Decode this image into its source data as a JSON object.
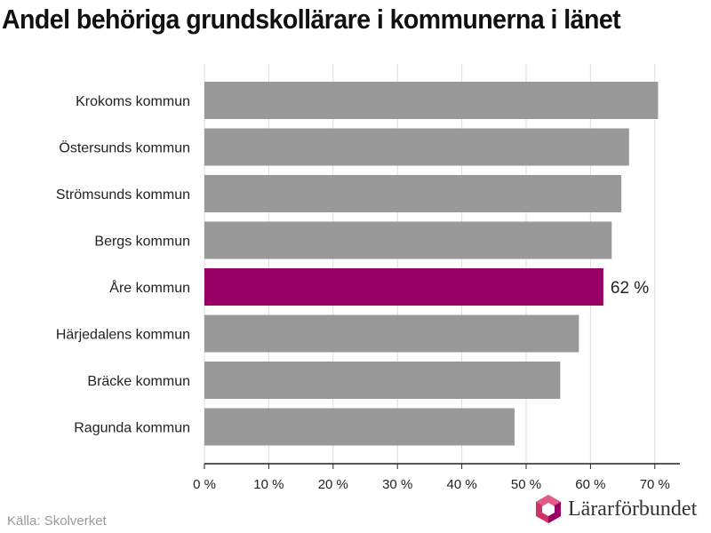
{
  "chart_data": {
    "type": "bar",
    "orientation": "horizontal",
    "title": "Andel behöriga grundskollärare i kommunerna i länet",
    "categories": [
      "Krokoms kommun",
      "Östersunds kommun",
      "Strömsunds kommun",
      "Bergs kommun",
      "Åre kommun",
      "Härjedalens kommun",
      "Bräcke kommun",
      "Ragunda kommun"
    ],
    "values": [
      70.5,
      66,
      64.8,
      63.3,
      62,
      58.2,
      55.3,
      48.2
    ],
    "highlight_index": 4,
    "data_labels": [
      {
        "index": 4,
        "text": "62 %"
      }
    ],
    "xlim": [
      0,
      75
    ],
    "xticks": [
      0,
      10,
      20,
      30,
      40,
      50,
      60,
      70
    ],
    "xtick_labels": [
      "0 %",
      "10 %",
      "20 %",
      "30 %",
      "40 %",
      "50 %",
      "60 %",
      "70 %"
    ],
    "xlabel": "",
    "ylabel": "",
    "grid": "vertical",
    "colors": {
      "bar": "#999999",
      "highlight": "#990066",
      "grid": "#dddddd",
      "axis": "#222222"
    }
  },
  "source": "Källa: Skolverket",
  "logo": {
    "text": "Lärarförbundet",
    "icon": "lararforbundet-logo-icon",
    "colors": [
      "#cc3366",
      "#990066",
      "#e05a8a"
    ]
  }
}
